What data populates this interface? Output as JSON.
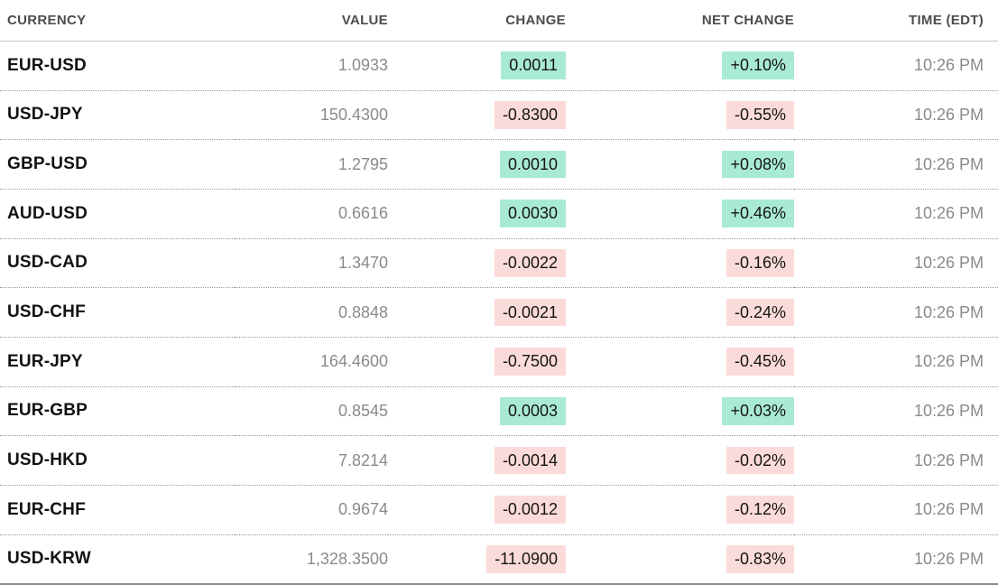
{
  "chart_data": {
    "type": "table",
    "columns": [
      "CURRENCY",
      "VALUE",
      "CHANGE",
      "NET CHANGE",
      "TIME (EDT)"
    ],
    "rows": [
      {
        "currency": "EUR-USD",
        "value": "1.0933",
        "change": "0.0011",
        "net_change": "+0.10%",
        "direction": "up",
        "time": "10:26 PM"
      },
      {
        "currency": "USD-JPY",
        "value": "150.4300",
        "change": "-0.8300",
        "net_change": "-0.55%",
        "direction": "down",
        "time": "10:26 PM"
      },
      {
        "currency": "GBP-USD",
        "value": "1.2795",
        "change": "0.0010",
        "net_change": "+0.08%",
        "direction": "up",
        "time": "10:26 PM"
      },
      {
        "currency": "AUD-USD",
        "value": "0.6616",
        "change": "0.0030",
        "net_change": "+0.46%",
        "direction": "up",
        "time": "10:26 PM"
      },
      {
        "currency": "USD-CAD",
        "value": "1.3470",
        "change": "-0.0022",
        "net_change": "-0.16%",
        "direction": "down",
        "time": "10:26 PM"
      },
      {
        "currency": "USD-CHF",
        "value": "0.8848",
        "change": "-0.0021",
        "net_change": "-0.24%",
        "direction": "down",
        "time": "10:26 PM"
      },
      {
        "currency": "EUR-JPY",
        "value": "164.4600",
        "change": "-0.7500",
        "net_change": "-0.45%",
        "direction": "down",
        "time": "10:26 PM"
      },
      {
        "currency": "EUR-GBP",
        "value": "0.8545",
        "change": "0.0003",
        "net_change": "+0.03%",
        "direction": "up",
        "time": "10:26 PM"
      },
      {
        "currency": "USD-HKD",
        "value": "7.8214",
        "change": "-0.0014",
        "net_change": "-0.02%",
        "direction": "down",
        "time": "10:26 PM"
      },
      {
        "currency": "EUR-CHF",
        "value": "0.9674",
        "change": "-0.0012",
        "net_change": "-0.12%",
        "direction": "down",
        "time": "10:26 PM"
      },
      {
        "currency": "USD-KRW",
        "value": "1,328.3500",
        "change": "-11.0900",
        "net_change": "-0.83%",
        "direction": "down",
        "time": "10:26 PM"
      }
    ]
  },
  "colors": {
    "up_bg": "#a9ead6",
    "down_bg": "#fbdbd9"
  }
}
